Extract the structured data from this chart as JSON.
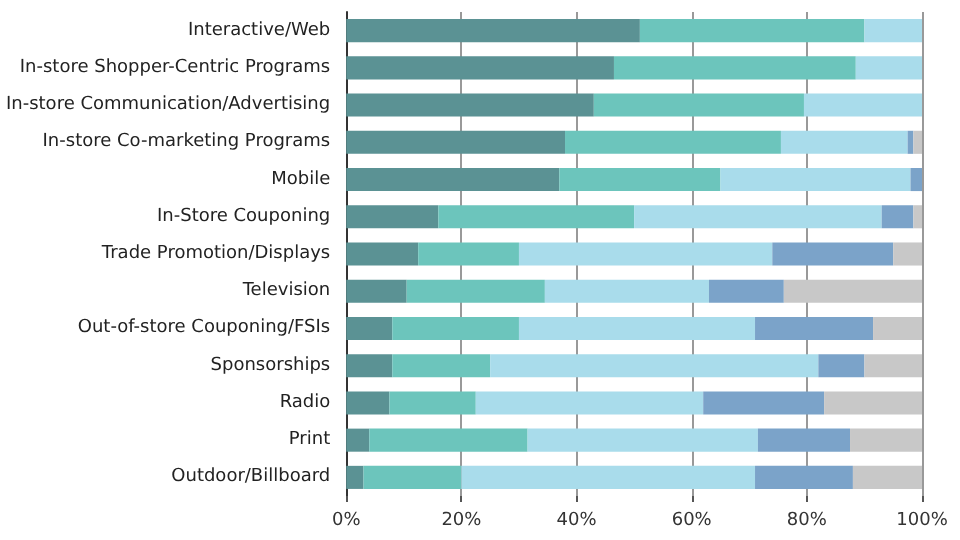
{
  "chart_data": {
    "type": "bar",
    "orientation": "horizontal",
    "stacked": true,
    "categories": [
      "Interactive/Web",
      "In-store Shopper-Centric Programs",
      "In-store Communication/Advertising",
      "In-store Co-marketing Programs",
      "Mobile",
      "In-Store Couponing",
      "Trade Promotion/Displays",
      "Television",
      "Out-of-store Couponing/FSIs",
      "Sponsorships",
      "Radio",
      "Print",
      "Outdoor/Billboard"
    ],
    "series": [
      {
        "color": "#5b9294",
        "values": [
          51,
          46.5,
          43,
          38,
          37,
          16,
          12.5,
          10.5,
          8,
          8,
          7.5,
          4,
          3
        ]
      },
      {
        "color": "#6cc5bc",
        "values": [
          39,
          42,
          36.5,
          37.5,
          28,
          34,
          17.5,
          24,
          22,
          17,
          15,
          27.5,
          17
        ]
      },
      {
        "color": "#a9dceb",
        "values": [
          10,
          11.5,
          20.5,
          22,
          33,
          43,
          44,
          28.5,
          41,
          57,
          39.5,
          40,
          51
        ]
      },
      {
        "color": "#7ba3c9",
        "values": [
          0,
          0,
          0,
          1,
          2,
          5.5,
          21,
          13,
          20.5,
          8,
          21,
          16,
          17
        ]
      },
      {
        "color": "#c8c8c8",
        "values": [
          0,
          0,
          0,
          1.5,
          0,
          1.5,
          5,
          24,
          8.5,
          10,
          17,
          12.5,
          12
        ]
      }
    ],
    "xlim": [
      0,
      100
    ],
    "xticks": [
      {
        "value": 0,
        "label": "0%"
      },
      {
        "value": 20,
        "label": "20%"
      },
      {
        "value": 40,
        "label": "40%"
      },
      {
        "value": 60,
        "label": "60%"
      },
      {
        "value": 80,
        "label": "80%"
      },
      {
        "value": 100,
        "label": "100%"
      }
    ],
    "grid": "x"
  }
}
